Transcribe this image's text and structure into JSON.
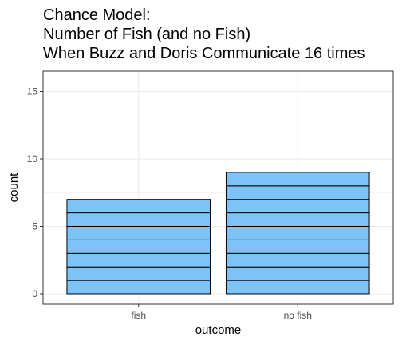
{
  "chart_data": {
    "type": "bar",
    "title_lines": [
      "Chance Model:",
      "Number of Fish (and no Fish)",
      "When Buzz and Doris Communicate 16 times"
    ],
    "categories": [
      "fish",
      "no fish"
    ],
    "values": [
      7,
      9
    ],
    "xlabel": "outcome",
    "ylabel": "count",
    "ylim": [
      0,
      16.8
    ],
    "yticks": [
      0,
      5,
      10,
      15
    ],
    "ytick_labels": [
      "0",
      "5",
      "10",
      "15"
    ],
    "bar_fill": "#7dc3f5",
    "bar_stroke": "#000000",
    "stacked_unit_segments": true,
    "grid": true,
    "legend": "none"
  }
}
